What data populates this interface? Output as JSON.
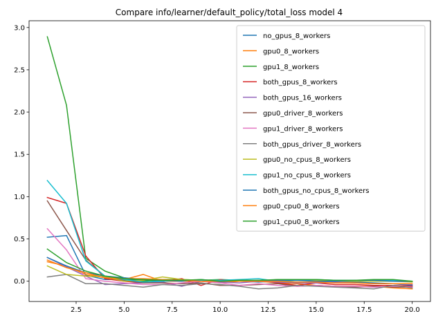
{
  "chart_data": {
    "type": "line",
    "title": "Compare info/learner/default_policy/total_loss model 4",
    "xlabel": "",
    "ylabel": "",
    "xlim": [
      0.05,
      20.95
    ],
    "ylim": [
      -0.24,
      3.08
    ],
    "x_ticks": [
      2.5,
      5.0,
      7.5,
      10.0,
      12.5,
      15.0,
      17.5,
      20.0
    ],
    "x_tick_labels": [
      "2.5",
      "5.0",
      "7.5",
      "10.0",
      "12.5",
      "15.0",
      "17.5",
      "20.0"
    ],
    "y_ticks": [
      0.0,
      0.5,
      1.0,
      1.5,
      2.0,
      2.5,
      3.0
    ],
    "y_tick_labels": [
      "0.0",
      "0.5",
      "1.0",
      "1.5",
      "2.0",
      "2.5",
      "3.0"
    ],
    "grid": false,
    "legend_position": "top-right",
    "x": [
      1,
      2,
      3,
      4,
      5,
      6,
      7,
      8,
      9,
      10,
      11,
      12,
      13,
      14,
      15,
      16,
      17,
      18,
      19,
      20
    ],
    "series": [
      {
        "name": "no_gpus_8_workers",
        "color": "#1f77b4",
        "values": [
          0.52,
          0.54,
          0.07,
          0.02,
          0.02,
          0.01,
          0.0,
          0.0,
          0.01,
          0.0,
          0.0,
          -0.01,
          0.0,
          -0.01,
          -0.02,
          0.0,
          -0.01,
          -0.02,
          -0.03,
          -0.05
        ]
      },
      {
        "name": "gpu0_8_workers",
        "color": "#ff7f0e",
        "values": [
          0.23,
          0.18,
          0.08,
          0.04,
          0.02,
          0.08,
          0.0,
          0.0,
          0.0,
          -0.02,
          0.0,
          0.0,
          -0.02,
          -0.03,
          -0.05,
          -0.06,
          -0.06,
          -0.06,
          -0.08,
          -0.09
        ]
      },
      {
        "name": "gpu1_8_workers",
        "color": "#2ca02c",
        "values": [
          2.89,
          2.08,
          0.27,
          0.12,
          0.04,
          0.0,
          0.02,
          0.02,
          0.01,
          0.02,
          0.01,
          0.0,
          0.01,
          0.02,
          0.01,
          0.01,
          0.0,
          0.0,
          0.0,
          0.0
        ]
      },
      {
        "name": "both_gpus_8_workers",
        "color": "#d62728",
        "values": [
          0.99,
          0.92,
          0.3,
          0.03,
          0.0,
          -0.02,
          0.0,
          0.03,
          -0.05,
          0.02,
          0.0,
          0.01,
          -0.02,
          -0.05,
          -0.02,
          -0.04,
          -0.04,
          -0.05,
          -0.05,
          -0.06
        ]
      },
      {
        "name": "both_gpus_16_workers",
        "color": "#9467bd",
        "values": [
          0.28,
          0.17,
          0.06,
          -0.04,
          -0.03,
          -0.02,
          -0.01,
          -0.06,
          0.0,
          -0.01,
          -0.02,
          0.0,
          -0.01,
          -0.02,
          -0.02,
          -0.01,
          -0.02,
          -0.03,
          -0.03,
          -0.04
        ]
      },
      {
        "name": "gpu0_driver_8_workers",
        "color": "#8c564b",
        "values": [
          0.95,
          0.6,
          0.25,
          0.06,
          0.01,
          -0.02,
          -0.02,
          -0.03,
          -0.02,
          -0.05,
          -0.05,
          -0.04,
          -0.03,
          -0.06,
          -0.05,
          -0.06,
          -0.07,
          -0.06,
          -0.07,
          -0.07
        ]
      },
      {
        "name": "gpu1_driver_8_workers",
        "color": "#e377c2",
        "values": [
          0.62,
          0.37,
          0.03,
          0.0,
          -0.02,
          -0.04,
          -0.04,
          -0.02,
          0.0,
          -0.02,
          -0.05,
          -0.03,
          -0.05,
          -0.06,
          -0.05,
          -0.06,
          -0.06,
          -0.07,
          -0.06,
          -0.07
        ]
      },
      {
        "name": "both_gpus_driver_8_workers",
        "color": "#7f7f7f",
        "values": [
          0.05,
          0.08,
          -0.03,
          -0.03,
          -0.05,
          -0.07,
          -0.04,
          -0.05,
          -0.03,
          -0.04,
          -0.06,
          -0.09,
          -0.08,
          -0.05,
          -0.06,
          -0.07,
          -0.08,
          -0.09,
          -0.05,
          -0.08
        ]
      },
      {
        "name": "gpu0_no_cpus_8_workers",
        "color": "#bcbd22",
        "values": [
          0.18,
          0.08,
          0.06,
          0.05,
          0.0,
          0.01,
          0.05,
          0.02,
          0.01,
          0.01,
          0.0,
          0.0,
          0.02,
          0.01,
          0.01,
          0.0,
          0.0,
          0.0,
          0.0,
          -0.01
        ]
      },
      {
        "name": "gpu1_no_cpus_8_workers",
        "color": "#17becf",
        "values": [
          1.19,
          0.92,
          0.24,
          0.06,
          0.02,
          -0.01,
          0.0,
          0.01,
          0.01,
          0.01,
          0.02,
          0.03,
          0.0,
          0.01,
          0.02,
          0.01,
          0.01,
          0.01,
          0.01,
          0.0
        ]
      },
      {
        "name": "both_gpus_no_cpus_8_workers",
        "color": "#1f77b4",
        "values": [
          0.28,
          0.18,
          0.1,
          0.06,
          0.04,
          0.02,
          0.01,
          0.0,
          0.02,
          0.0,
          0.01,
          0.0,
          0.01,
          0.01,
          0.0,
          0.0,
          0.01,
          0.01,
          0.0,
          0.0
        ]
      },
      {
        "name": "gpu0_cpu0_8_workers",
        "color": "#ff7f0e",
        "values": [
          0.25,
          0.16,
          0.1,
          0.04,
          0.03,
          0.03,
          0.02,
          0.01,
          0.0,
          0.0,
          0.0,
          0.0,
          0.0,
          -0.01,
          -0.01,
          -0.02,
          -0.02,
          -0.03,
          -0.03,
          -0.03
        ]
      },
      {
        "name": "gpu1_cpu0_8_workers",
        "color": "#2ca02c",
        "values": [
          0.38,
          0.22,
          0.12,
          0.06,
          0.03,
          0.02,
          0.01,
          0.01,
          0.02,
          0.0,
          0.01,
          0.01,
          0.02,
          0.02,
          0.02,
          0.01,
          0.01,
          0.02,
          0.02,
          0.0
        ]
      }
    ]
  }
}
